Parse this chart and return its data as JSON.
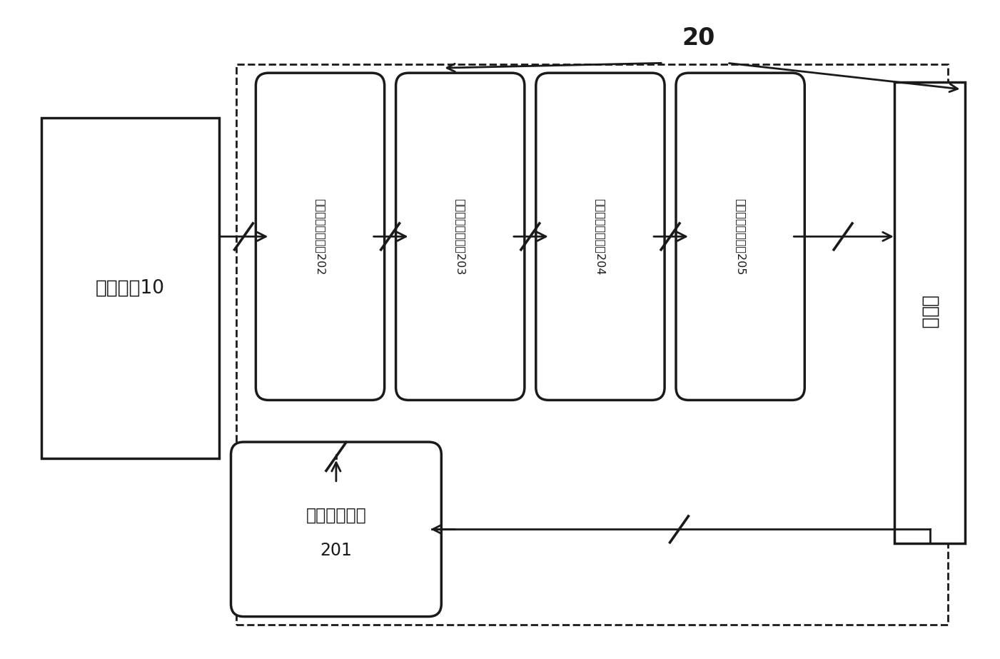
{
  "bg_color": "#ffffff",
  "line_color": "#1a1a1a",
  "fig_width": 14.01,
  "fig_height": 9.23,
  "dpi": 100,
  "label_20": "20",
  "touchpad_label": "触控面板10",
  "processor_label": "处理器",
  "module201_line1": "发射通道模块",
  "module201_line2": "201",
  "module202_label": "差分电荷放大模块202",
  "module203_label": "接收通道确定模块203",
  "module204_label": "发射通道确实模块204",
  "module205_label": "触控区域采集模块205"
}
